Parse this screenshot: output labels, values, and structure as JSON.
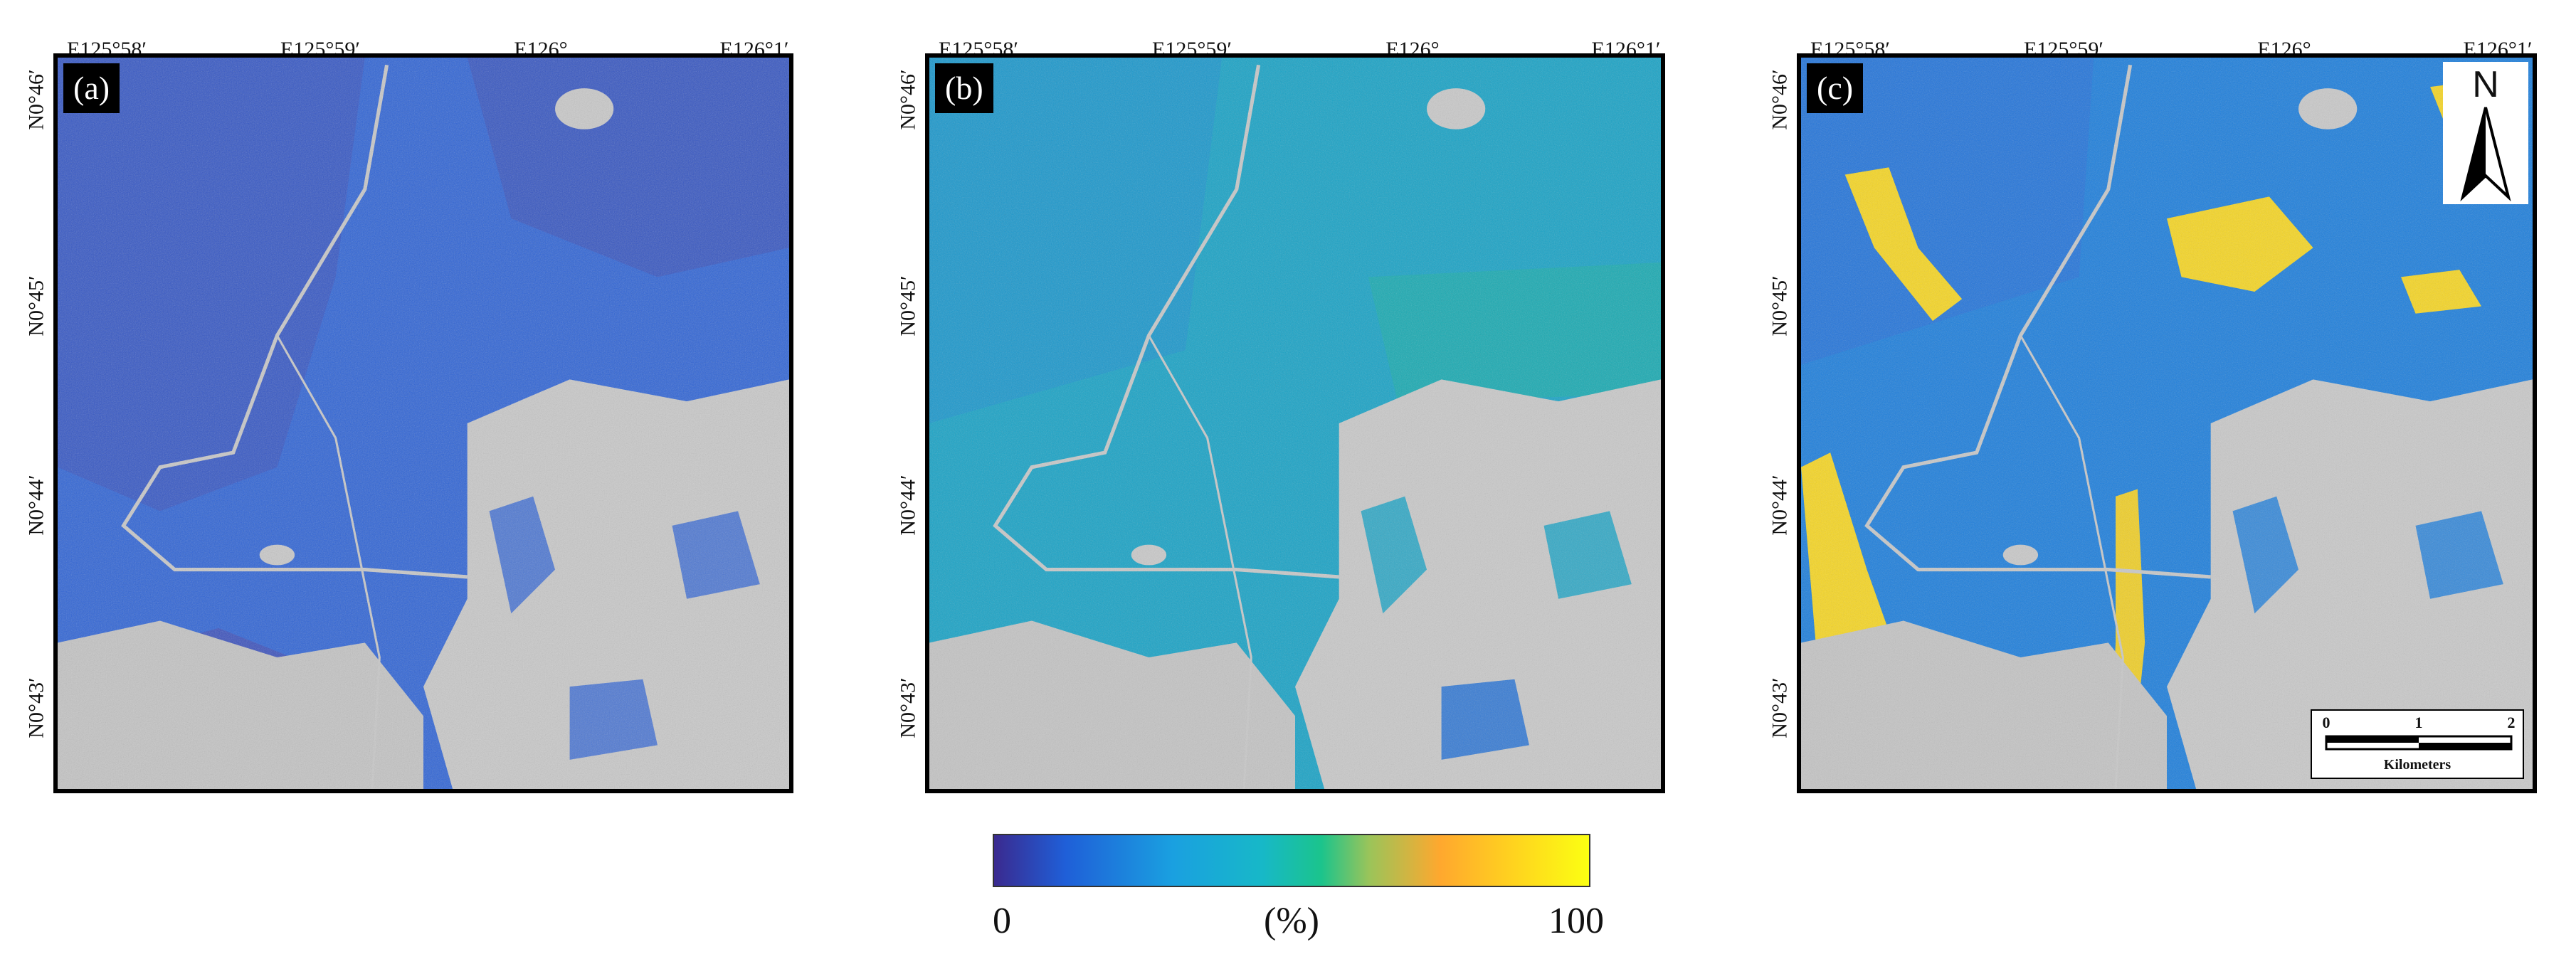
{
  "panels": [
    {
      "id": "a",
      "label": "(a)"
    },
    {
      "id": "b",
      "label": "(b)"
    },
    {
      "id": "c",
      "label": "(c)"
    }
  ],
  "coordinates": {
    "longitude_labels": [
      "E125°58′",
      "E125°59′",
      "E126°",
      "E126°1′"
    ],
    "latitude_labels": [
      "N0°46′",
      "N0°45′",
      "N0°44′",
      "N0°43′"
    ]
  },
  "north_arrow": {
    "letter": "N"
  },
  "scale_bar": {
    "ticks": [
      "0",
      "1",
      "2"
    ],
    "unit": "Kilometers"
  },
  "legend": {
    "min": "0",
    "max": "100",
    "unit": "(%)",
    "colors": [
      "#3a2a8f",
      "#1f5fd8",
      "#1aa0e0",
      "#17b8c8",
      "#1bc48c",
      "#ffa82e",
      "#fbff12"
    ]
  }
}
